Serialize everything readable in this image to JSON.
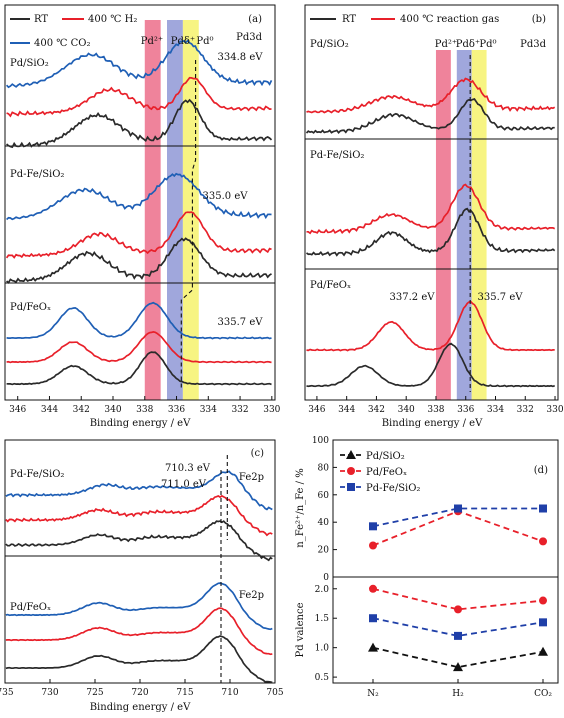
{
  "chart_data": [
    {
      "panel": "(a)",
      "type": "line",
      "spectrum": "Pd3d",
      "xlabel": "Binding energy / eV",
      "xlim": [
        346,
        330
      ],
      "ticks": [
        "346",
        "344",
        "342",
        "340",
        "338",
        "336",
        "334",
        "332",
        "330"
      ],
      "legend": [
        "RT",
        "400 ℃ H₂",
        "400 ℃ CO₂"
      ],
      "colors": {
        "RT": "#2a2a2a",
        "H2": "#e8202a",
        "CO2": "#1f5fb5"
      },
      "bands": [
        {
          "label": "Pd²⁺",
          "range": [
            338.0,
            337.0
          ],
          "color": "#e8607a"
        },
        {
          "label": "Pdδ⁺",
          "range": [
            336.5,
            335.5
          ],
          "color": "#7a8ad0"
        },
        {
          "label": "Pd⁰",
          "range": [
            335.5,
            334.5
          ],
          "color": "#f4f05a"
        }
      ],
      "subpanels": [
        {
          "label": "Pd/SiO₂",
          "annotation": "334.8 eV",
          "peak": 334.8
        },
        {
          "label": "Pd-Fe/SiO₂",
          "annotation": "335.0 eV",
          "peak": 335.0
        },
        {
          "label": "Pd/FeOₓ",
          "annotation": "335.7 eV",
          "peak": 335.7
        }
      ]
    },
    {
      "panel": "(b)",
      "type": "line",
      "spectrum": "Pd3d",
      "xlabel": "Binding energy / eV",
      "xlim": [
        346,
        330
      ],
      "ticks": [
        "346",
        "344",
        "342",
        "340",
        "338",
        "336",
        "334",
        "332",
        "330"
      ],
      "legend": [
        "RT",
        "400 ℃ reaction gas"
      ],
      "bands": [
        {
          "label": "Pd²⁺"
        },
        {
          "label": "Pdδ⁺"
        },
        {
          "label": "Pd⁰"
        }
      ],
      "subpanels": [
        {
          "label": "Pd/SiO₂"
        },
        {
          "label": "Pd-Fe/SiO₂"
        },
        {
          "label": "Pd/FeOₓ",
          "annotations": [
            "337.2 eV",
            "335.7 eV"
          ]
        }
      ]
    },
    {
      "panel": "(c)",
      "type": "line",
      "spectrum": "Fe2p",
      "xlabel": "Binding energy / eV",
      "xlim": [
        735,
        705
      ],
      "ticks": [
        "735",
        "730",
        "725",
        "720",
        "715",
        "710",
        "705"
      ],
      "subpanels": [
        {
          "label": "Pd-Fe/SiO₂",
          "annotations": [
            "710.3 eV",
            "711.0 eV"
          ]
        },
        {
          "label": "Pd/FeOₓ"
        }
      ]
    },
    {
      "panel": "(d)",
      "type": "line",
      "categories": [
        "N₂",
        "H₂",
        "CO₂"
      ],
      "legend": [
        "Pd/SiO₂",
        "Pd/FeOₓ",
        "Pd-Fe/SiO₂"
      ],
      "top": {
        "ylabel": "n_Fe²⁺/n_Fe / %",
        "ylim": [
          0,
          100
        ],
        "yticks": [
          "0",
          "20",
          "40",
          "60",
          "80",
          "100"
        ],
        "series": [
          {
            "name": "Pd/FeOₓ",
            "values": [
              23,
              48,
              26
            ]
          },
          {
            "name": "Pd-Fe/SiO₂",
            "values": [
              37,
              50,
              50
            ]
          }
        ]
      },
      "bottom": {
        "ylabel": "Pd valence",
        "ylim": [
          0.4,
          2.2
        ],
        "yticks": [
          "0.5",
          "1.0",
          "1.5",
          "2.0"
        ],
        "series": [
          {
            "name": "Pd/SiO₂",
            "values": [
              1.0,
              0.67,
              0.93
            ]
          },
          {
            "name": "Pd/FeOₓ",
            "values": [
              2.0,
              1.65,
              1.8
            ]
          },
          {
            "name": "Pd-Fe/SiO₂",
            "values": [
              1.5,
              1.2,
              1.43
            ]
          }
        ]
      }
    }
  ]
}
